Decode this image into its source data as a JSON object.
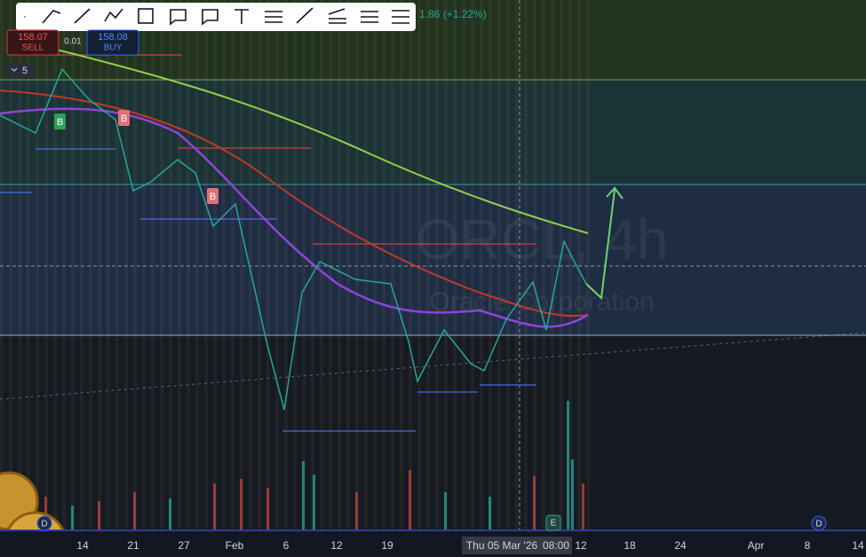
{
  "trade_panel": {
    "sell_price": "158.07",
    "sell_label": "SELL",
    "lot_size": "0.01",
    "buy_price": "158.08",
    "buy_label": "BUY"
  },
  "interval_badge": "5",
  "price_change": "1.86 (+1.22%)",
  "watermark": {
    "symbol": "ORCL, 4h",
    "name": "Oracle Corporation"
  },
  "signals": [
    "B",
    "B",
    "B"
  ],
  "time_axis": [
    "14",
    "21",
    "27",
    "Feb",
    "6",
    "12",
    "19",
    "12",
    "18",
    "24",
    "Apr",
    "8",
    "14"
  ],
  "crosshair": {
    "date": "Thu 05 Mar '26",
    "time": "08:00"
  },
  "event_markers": [
    "D",
    "E",
    "D"
  ]
}
